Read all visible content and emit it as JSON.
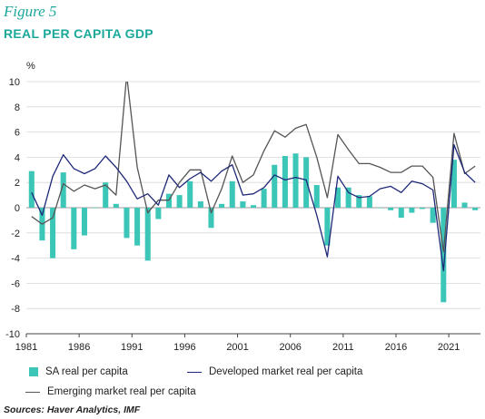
{
  "figure_label": "Figure 5",
  "chart_data": {
    "type": "bar",
    "title": "REAL PER CAPITA GDP",
    "ylabel": "%",
    "ylim": [
      -10,
      10
    ],
    "yticks": [
      -10,
      -8,
      -6,
      -4,
      -2,
      0,
      2,
      4,
      6,
      8,
      10
    ],
    "x": [
      1981,
      1982,
      1983,
      1984,
      1985,
      1986,
      1987,
      1988,
      1989,
      1990,
      1991,
      1992,
      1993,
      1994,
      1995,
      1996,
      1997,
      1998,
      1999,
      2000,
      2001,
      2002,
      2003,
      2004,
      2005,
      2006,
      2007,
      2008,
      2009,
      2010,
      2011,
      2012,
      2013,
      2014,
      2015,
      2016,
      2017,
      2018,
      2019,
      2020,
      2021,
      2022,
      2023
    ],
    "xticks": [
      1981,
      1986,
      1991,
      1996,
      2001,
      2006,
      2011,
      2016,
      2021
    ],
    "grid": true,
    "legend_position": "bottom",
    "series": [
      {
        "name": "SA real per capita",
        "type": "bar",
        "color": "#3cc6b8",
        "values": [
          2.9,
          -2.6,
          -4.0,
          2.8,
          -3.3,
          -2.2,
          0.0,
          2.0,
          0.3,
          -2.4,
          -3.0,
          -4.2,
          -0.9,
          1.1,
          1.0,
          2.1,
          0.5,
          -1.6,
          0.3,
          2.1,
          0.5,
          0.2,
          1.5,
          3.4,
          4.1,
          4.3,
          4.0,
          1.8,
          -3.0,
          1.6,
          1.6,
          1.0,
          0.9,
          0.0,
          -0.2,
          -0.8,
          -0.4,
          -0.1,
          -1.2,
          -7.5,
          3.8,
          0.4,
          -0.2
        ]
      },
      {
        "name": "Developed market real per capita",
        "type": "line",
        "color": "#1e2878",
        "values": [
          1.2,
          -0.6,
          2.5,
          4.2,
          3.1,
          2.7,
          3.1,
          4.1,
          3.2,
          2.1,
          0.7,
          1.1,
          0.2,
          2.6,
          1.6,
          2.3,
          2.8,
          2.1,
          2.9,
          3.4,
          1.0,
          1.1,
          1.6,
          2.6,
          2.2,
          2.4,
          2.2,
          -0.6,
          -3.9,
          2.5,
          1.2,
          0.8,
          0.9,
          1.5,
          1.7,
          1.2,
          2.1,
          1.9,
          1.4,
          -5.0,
          5.0,
          2.8,
          2.0
        ]
      },
      {
        "name": "Emerging market real per capita",
        "type": "line",
        "color": "#555555",
        "values": [
          -0.7,
          -1.3,
          -0.8,
          1.9,
          1.3,
          1.8,
          1.5,
          1.8,
          1.0,
          10.5,
          3.2,
          -0.4,
          0.6,
          0.6,
          2.0,
          3.0,
          3.0,
          -0.4,
          1.5,
          4.1,
          2.0,
          2.6,
          4.5,
          6.1,
          5.6,
          6.3,
          6.6,
          4.0,
          0.8,
          5.8,
          4.6,
          3.5,
          3.5,
          3.2,
          2.8,
          2.8,
          3.3,
          3.3,
          2.4,
          -3.5,
          5.9,
          2.7,
          3.3
        ]
      }
    ]
  },
  "source": "Sources: Haver Analytics, IMF"
}
